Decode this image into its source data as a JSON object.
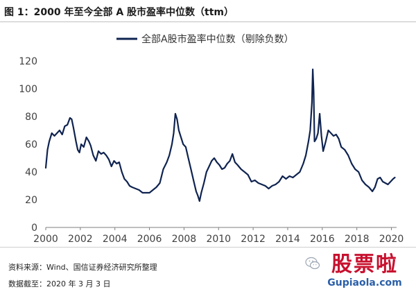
{
  "figure": {
    "title": "图 1：2000 年至今全部 A 股市盈率中位数（ttm）"
  },
  "chart_data": {
    "type": "line",
    "title": "",
    "legend": "top-center",
    "xlabel": "",
    "ylabel": "",
    "ylim": [
      0,
      120
    ],
    "xlim": [
      2000,
      2020.3
    ],
    "yticks": [
      "0",
      "20",
      "40",
      "60",
      "80",
      "100",
      "120"
    ],
    "xticks": [
      "2000",
      "2002",
      "2004",
      "2006",
      "2008",
      "2010",
      "2012",
      "2014",
      "2016",
      "2018",
      "2020"
    ],
    "series": [
      {
        "name": "全部A股市盈率中位数（剔除负数）",
        "color": "#0f2350",
        "x": [
          2000.0,
          2000.1,
          2000.2,
          2000.35,
          2000.5,
          2000.65,
          2000.8,
          2000.95,
          2001.1,
          2001.25,
          2001.4,
          2001.5,
          2001.6,
          2001.75,
          2001.85,
          2001.95,
          2002.05,
          2002.2,
          2002.35,
          2002.5,
          2002.6,
          2002.75,
          2002.9,
          2003.05,
          2003.2,
          2003.35,
          2003.5,
          2003.65,
          2003.8,
          2003.95,
          2004.1,
          2004.25,
          2004.4,
          2004.55,
          2004.7,
          2004.85,
          2005.0,
          2005.2,
          2005.4,
          2005.6,
          2005.8,
          2006.0,
          2006.2,
          2006.4,
          2006.6,
          2006.8,
          2007.0,
          2007.15,
          2007.3,
          2007.4,
          2007.5,
          2007.6,
          2007.7,
          2007.8,
          2007.95,
          2008.1,
          2008.25,
          2008.4,
          2008.55,
          2008.7,
          2008.8,
          2008.9,
          2009.0,
          2009.15,
          2009.3,
          2009.45,
          2009.6,
          2009.75,
          2009.9,
          2010.05,
          2010.2,
          2010.35,
          2010.5,
          2010.65,
          2010.8,
          2010.95,
          2011.1,
          2011.3,
          2011.5,
          2011.7,
          2011.9,
          2012.1,
          2012.3,
          2012.5,
          2012.7,
          2012.9,
          2013.1,
          2013.3,
          2013.5,
          2013.7,
          2013.9,
          2014.1,
          2014.3,
          2014.5,
          2014.7,
          2014.9,
          2015.05,
          2015.2,
          2015.3,
          2015.4,
          2015.45,
          2015.5,
          2015.55,
          2015.65,
          2015.75,
          2015.85,
          2015.95,
          2016.05,
          2016.2,
          2016.35,
          2016.5,
          2016.65,
          2016.8,
          2016.95,
          2017.1,
          2017.3,
          2017.5,
          2017.7,
          2017.9,
          2018.1,
          2018.3,
          2018.5,
          2018.7,
          2018.9,
          2019.05,
          2019.2,
          2019.35,
          2019.5,
          2019.65,
          2019.8,
          2019.95,
          2020.1,
          2020.2
        ],
        "values": [
          43,
          56,
          62,
          68,
          66,
          68,
          70,
          67,
          73,
          74,
          79,
          78,
          72,
          62,
          56,
          54,
          60,
          58,
          65,
          62,
          59,
          52,
          48,
          55,
          53,
          54,
          52,
          49,
          44,
          48,
          46,
          47,
          40,
          35,
          33,
          30,
          29,
          28,
          27,
          25,
          25,
          25,
          27,
          29,
          32,
          42,
          47,
          52,
          60,
          68,
          82,
          78,
          70,
          66,
          60,
          58,
          50,
          42,
          34,
          26,
          23,
          19,
          25,
          32,
          40,
          44,
          48,
          50,
          47,
          45,
          42,
          43,
          46,
          48,
          53,
          47,
          45,
          42,
          40,
          38,
          33,
          34,
          32,
          31,
          30,
          28,
          30,
          31,
          33,
          37,
          35,
          37,
          36,
          38,
          40,
          46,
          52,
          62,
          70,
          90,
          114,
          98,
          62,
          64,
          68,
          82,
          66,
          55,
          62,
          70,
          68,
          66,
          67,
          64,
          58,
          56,
          52,
          46,
          42,
          40,
          34,
          31,
          29,
          26,
          29,
          35,
          36,
          33,
          32,
          31,
          33,
          35,
          36
        ]
      }
    ]
  },
  "footer": {
    "source": "资料来源：Wind、国信证券经济研究所整理",
    "date": "数据截至：2020 年 3 月 3 日"
  },
  "watermark": {
    "logo": "股票啦",
    "url": "Gupiaola.com"
  }
}
